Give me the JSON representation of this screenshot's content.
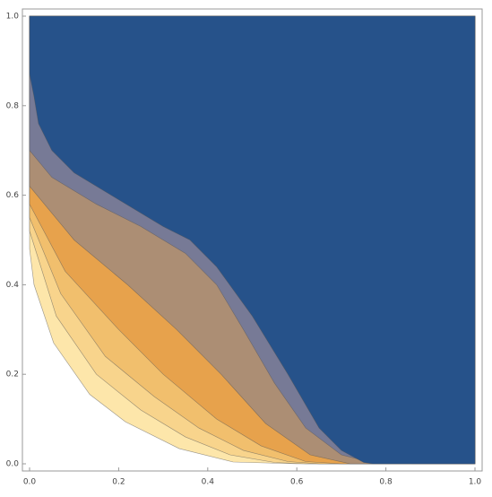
{
  "chart_data": {
    "type": "contour",
    "xlim": [
      0,
      1
    ],
    "ylim": [
      0,
      1
    ],
    "xticks": [
      {
        "value": 0,
        "label": "0.0"
      },
      {
        "value": 0.2,
        "label": "0.2"
      },
      {
        "value": 0.4,
        "label": "0.4"
      },
      {
        "value": 0.6,
        "label": "0.6"
      },
      {
        "value": 0.8,
        "label": "0.8"
      },
      {
        "value": 1,
        "label": "1.0"
      }
    ],
    "yticks": [
      {
        "value": 0,
        "label": "0.0"
      },
      {
        "value": 0.2,
        "label": "0.2"
      },
      {
        "value": 0.4,
        "label": "0.4"
      },
      {
        "value": 0.6,
        "label": "0.6"
      },
      {
        "value": 0.8,
        "label": "0.8"
      },
      {
        "value": 1,
        "label": "1.0"
      }
    ],
    "bands": [
      {
        "color": "#fde6aa",
        "x": [
          0,
          0.01,
          0.054,
          0.135,
          0.215,
          0.336,
          0.457,
          0.6
        ],
        "y": [
          0.48,
          0.4,
          0.27,
          0.155,
          0.094,
          0.034,
          0.004,
          0
        ]
      },
      {
        "color": "#f8d48c",
        "x": [
          0,
          0.06,
          0.15,
          0.25,
          0.35,
          0.45,
          0.55,
          0.62
        ],
        "y": [
          0.52,
          0.33,
          0.2,
          0.12,
          0.06,
          0.02,
          0.003,
          0
        ]
      },
      {
        "color": "#f1bf6d",
        "x": [
          0,
          0.07,
          0.17,
          0.28,
          0.38,
          0.48,
          0.58,
          0.65
        ],
        "y": [
          0.55,
          0.38,
          0.24,
          0.15,
          0.08,
          0.03,
          0.005,
          0
        ]
      },
      {
        "color": "#e7a24c",
        "x": [
          0,
          0.08,
          0.2,
          0.3,
          0.42,
          0.52,
          0.62,
          0.7
        ],
        "y": [
          0.58,
          0.43,
          0.3,
          0.2,
          0.1,
          0.04,
          0.005,
          0
        ]
      },
      {
        "color": "#ac8e74",
        "x": [
          0,
          0.1,
          0.22,
          0.33,
          0.43,
          0.53,
          0.63,
          0.72
        ],
        "y": [
          0.62,
          0.5,
          0.4,
          0.3,
          0.2,
          0.09,
          0.02,
          0
        ]
      },
      {
        "color": "#777a96",
        "x": [
          0,
          0.05,
          0.15,
          0.25,
          0.35,
          0.42,
          0.48,
          0.55,
          0.62,
          0.7,
          0.76,
          0.8,
          0.86
        ],
        "y": [
          0.7,
          0.64,
          0.58,
          0.53,
          0.47,
          0.4,
          0.3,
          0.18,
          0.08,
          0.02,
          0.005,
          0.01,
          0
        ]
      },
      {
        "color": "#26528a",
        "x": [
          0,
          0.01,
          0.02,
          0.05,
          0.1,
          0.2,
          0.3,
          0.36,
          0.42,
          0.5,
          0.58,
          0.65,
          0.7,
          0.75,
          0.77
        ],
        "y": [
          0.87,
          0.82,
          0.76,
          0.7,
          0.65,
          0.59,
          0.53,
          0.5,
          0.44,
          0.33,
          0.2,
          0.08,
          0.03,
          0.003,
          0
        ]
      }
    ]
  }
}
